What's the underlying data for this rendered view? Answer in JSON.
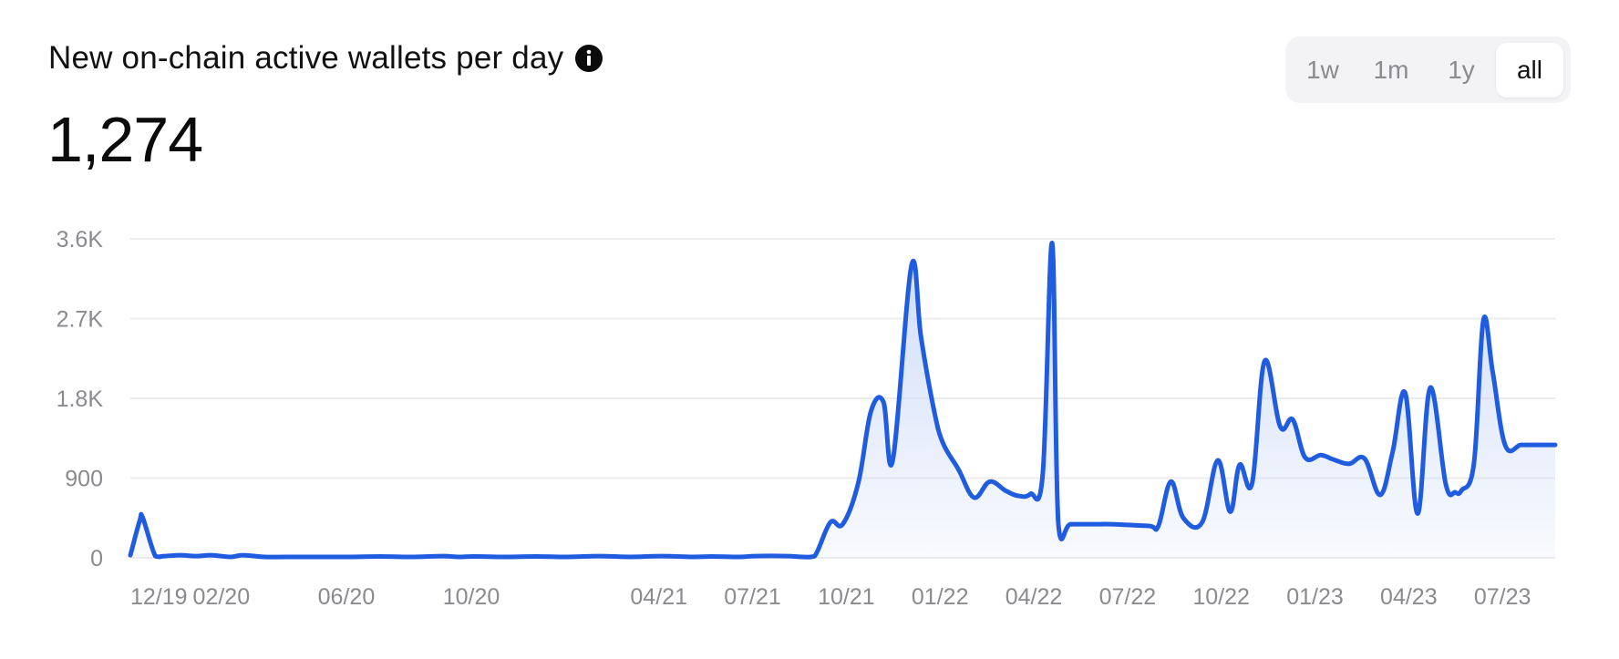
{
  "header": {
    "title": "New on-chain active wallets per day",
    "value": "1,274"
  },
  "ranges": [
    {
      "label": "1w",
      "active": false
    },
    {
      "label": "1m",
      "active": false
    },
    {
      "label": "1y",
      "active": false
    },
    {
      "label": "all",
      "active": true
    }
  ],
  "colors": {
    "line": "#1f5ce0",
    "fill_top": "#c9d7f7",
    "grid": "#ececec",
    "axis_text": "#8a8a8f"
  },
  "chart_data": {
    "type": "area",
    "title": "New on-chain active wallets per day",
    "xlabel": "",
    "ylabel": "",
    "ylim": [
      0,
      3600
    ],
    "yticks": [
      0,
      900,
      1800,
      2700,
      3600
    ],
    "ytick_labels": [
      "0",
      "900",
      "1.8K",
      "2.7K",
      "3.6K"
    ],
    "xlim": [
      0,
      45.6
    ],
    "xticks": [
      0,
      2,
      6,
      10,
      16,
      19,
      22,
      25,
      28,
      31,
      34,
      37,
      40,
      43
    ],
    "xtick_labels": [
      "12/19",
      "02/20",
      "06/20",
      "10/20",
      "04/21",
      "07/21",
      "10/21",
      "01/22",
      "04/22",
      "07/22",
      "10/22",
      "01/23",
      "04/23",
      "07/23"
    ],
    "grid": true,
    "series": [
      {
        "name": "",
        "x": [
          -0.1,
          0.3,
          0.4,
          0.8,
          1.1,
          1.6,
          2.1,
          2.6,
          3.2,
          3.6,
          4.3,
          5.0,
          6.0,
          7.0,
          8.0,
          9.0,
          10.0,
          10.5,
          11.0,
          12.0,
          13.0,
          14.0,
          15.0,
          16.0,
          17.0,
          18.0,
          18.6,
          19.5,
          20.0,
          21.0,
          21.5,
          21.9,
          22.4,
          22.8,
          23.3,
          23.7,
          24.1,
          24.4,
          25.0,
          25.3,
          25.7,
          26.0,
          26.5,
          27.0,
          27.5,
          28.0,
          28.4,
          28.8,
          29.2,
          29.5,
          29.7,
          30.1,
          31.0,
          31.4,
          32.6,
          32.9,
          33.3,
          33.7,
          34.3,
          34.8,
          35.2,
          35.5,
          35.9,
          36.3,
          36.8,
          37.2,
          37.6,
          38.1,
          38.5,
          39.0,
          39.5,
          40.0,
          40.4,
          40.8,
          41.2,
          41.6,
          42.1,
          42.4,
          42.6,
          43.0,
          43.3,
          43.6,
          44.0,
          44.5,
          44.9,
          45.3,
          45.6
        ],
        "values": [
          30,
          420,
          450,
          20,
          20,
          30,
          20,
          30,
          10,
          30,
          10,
          10,
          10,
          10,
          15,
          10,
          20,
          10,
          15,
          10,
          15,
          10,
          20,
          10,
          20,
          10,
          15,
          10,
          20,
          20,
          10,
          20,
          400,
          380,
          850,
          1650,
          1760,
          1100,
          3300,
          2500,
          1700,
          1300,
          1000,
          680,
          860,
          760,
          700,
          720,
          950,
          3550,
          380,
          380,
          380,
          380,
          360,
          360,
          860,
          450,
          400,
          1100,
          520,
          1050,
          840,
          2220,
          1480,
          1560,
          1130,
          1160,
          1110,
          1060,
          1120,
          710,
          1200,
          1860,
          500,
          1920,
          830,
          740,
          760,
          1070,
          2680,
          2100,
          1270,
          1274,
          1274,
          1274,
          1274
        ]
      }
    ]
  }
}
